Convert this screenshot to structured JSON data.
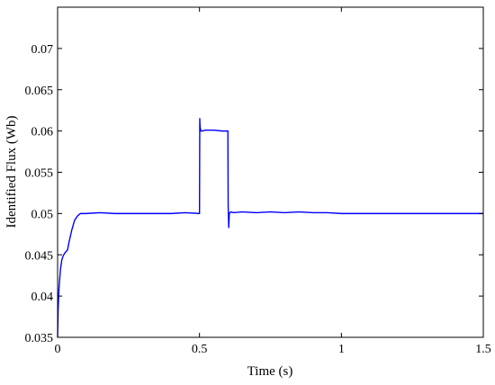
{
  "chart_data": {
    "type": "line",
    "title": "",
    "xlabel": "Time (s)",
    "ylabel": "Identified Flux (Wb)",
    "xlim": [
      0,
      1.5
    ],
    "ylim": [
      0.035,
      0.075
    ],
    "grid": false,
    "legend": "none",
    "x_ticks": [
      {
        "value": 0,
        "label": "0"
      },
      {
        "value": 0.5,
        "label": "0.5"
      },
      {
        "value": 1,
        "label": "1"
      },
      {
        "value": 1.5,
        "label": "1.5"
      }
    ],
    "y_ticks": [
      {
        "value": 0.035,
        "label": "0.035"
      },
      {
        "value": 0.04,
        "label": "0.04"
      },
      {
        "value": 0.045,
        "label": "0.045"
      },
      {
        "value": 0.05,
        "label": "0.05"
      },
      {
        "value": 0.055,
        "label": "0.055"
      },
      {
        "value": 0.06,
        "label": "0.06"
      },
      {
        "value": 0.065,
        "label": "0.065"
      },
      {
        "value": 0.07,
        "label": "0.07"
      }
    ],
    "series": [
      {
        "color": "#0000ff",
        "x": [
          0,
          0.002,
          0.005,
          0.01,
          0.015,
          0.02,
          0.025,
          0.03,
          0.035,
          0.04,
          0.05,
          0.06,
          0.07,
          0.08,
          0.09,
          0.1,
          0.15,
          0.2,
          0.25,
          0.3,
          0.35,
          0.4,
          0.45,
          0.5,
          0.501,
          0.502,
          0.505,
          0.51,
          0.52,
          0.55,
          0.58,
          0.6,
          0.601,
          0.603,
          0.605,
          0.61,
          0.62,
          0.65,
          0.7,
          0.75,
          0.8,
          0.85,
          0.9,
          0.95,
          1.0,
          1.05,
          1.1,
          1.15,
          1.2,
          1.25,
          1.3,
          1.35,
          1.4,
          1.45,
          1.5
        ],
        "y": [
          0.035,
          0.0385,
          0.041,
          0.0432,
          0.0444,
          0.0449,
          0.0452,
          0.0454,
          0.0456,
          0.0465,
          0.048,
          0.0492,
          0.0497,
          0.05,
          0.05,
          0.05,
          0.0501,
          0.05,
          0.05,
          0.05,
          0.05,
          0.05,
          0.0501,
          0.05,
          0.0615,
          0.0605,
          0.06,
          0.06,
          0.0601,
          0.0601,
          0.06,
          0.06,
          0.051,
          0.0483,
          0.05,
          0.0502,
          0.0501,
          0.0502,
          0.0501,
          0.0502,
          0.0501,
          0.0502,
          0.0501,
          0.0501,
          0.05,
          0.05,
          0.05,
          0.05,
          0.05,
          0.05,
          0.05,
          0.05,
          0.05,
          0.05,
          0.05
        ]
      }
    ]
  }
}
